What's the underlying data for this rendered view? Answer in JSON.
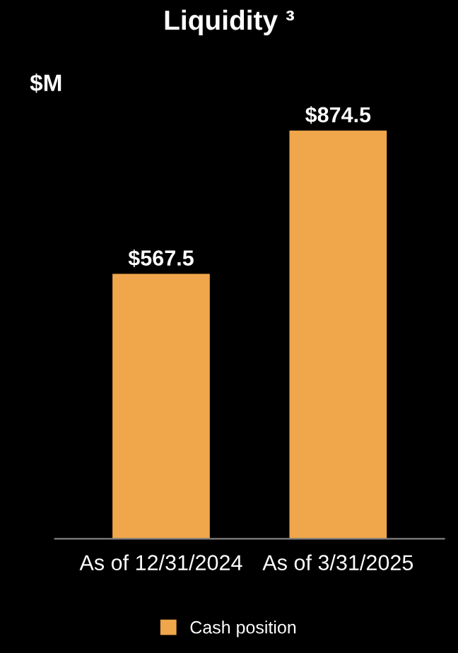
{
  "chart_data": {
    "type": "bar",
    "title": "Liquidity ³",
    "ylabel": "$M",
    "categories": [
      "As of 12/31/2024",
      "As of 3/31/2025"
    ],
    "series": [
      {
        "name": "Cash position",
        "color": "#f0a64a",
        "values": [
          567.5,
          874.5
        ],
        "value_labels": [
          "$567.5",
          "$874.5"
        ]
      }
    ],
    "legend": "bottom",
    "grid": false
  }
}
